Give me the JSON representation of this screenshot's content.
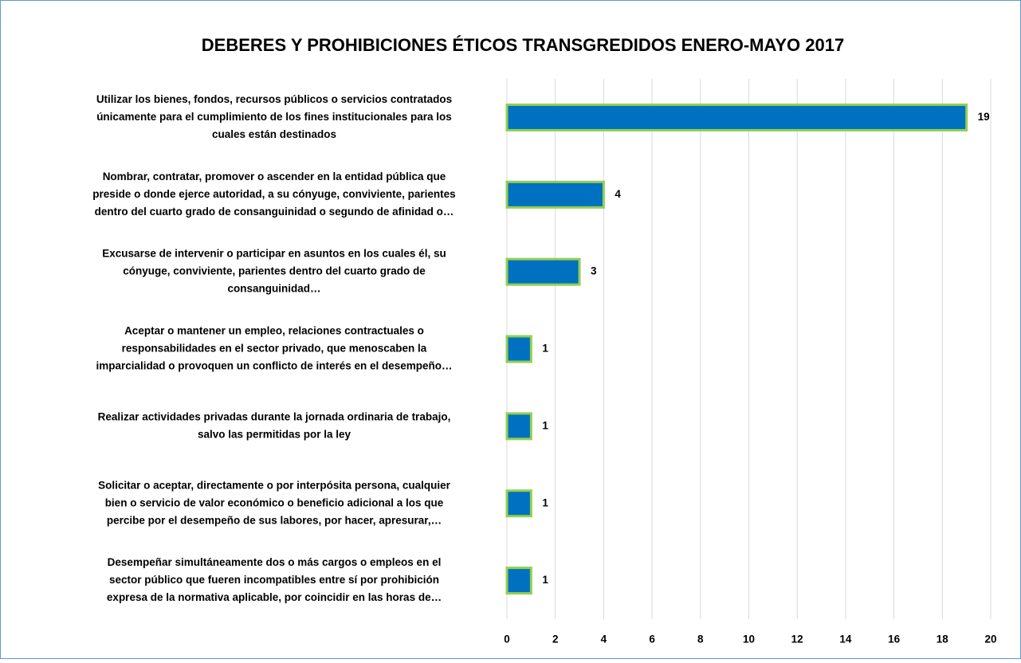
{
  "chart_data": {
    "type": "bar",
    "orientation": "horizontal",
    "title": "DEBERES Y PROHIBICIONES ÉTICOS TRANSGREDIDOS ENERO-MAYO 2017",
    "categories": [
      [
        "Utilizar los bienes, fondos, recursos públicos o servicios contratados",
        "únicamente para el cumplimiento de los fines institucionales para los",
        "cuales están destinados"
      ],
      [
        "Nombrar, contratar, promover o ascender en la entidad pública que",
        "preside o donde ejerce autoridad, a su cónyuge, conviviente, parientes",
        "dentro del cuarto grado de consanguinidad o segundo de afinidad o…"
      ],
      [
        "Excusarse de intervenir o participar en asuntos en los cuales él, su",
        "cónyuge, conviviente, parientes dentro del cuarto grado de",
        "consanguinidad…"
      ],
      [
        "Aceptar o mantener un empleo, relaciones contractuales o",
        "responsabilidades en el sector privado, que menoscaben la",
        "imparcialidad o provoquen un conflicto de interés en el desempeño…"
      ],
      [
        "Realizar actividades privadas durante la jornada ordinaria de trabajo,",
        "salvo las permitidas por la ley"
      ],
      [
        "Solicitar o aceptar, directamente o por interpósita persona, cualquier",
        "bien o servicio de valor económico o beneficio adicional a los que",
        "percibe por el desempeño de sus labores, por hacer, apresurar,…"
      ],
      [
        "Desempeñar simultáneamente dos o más cargos o empleos en el",
        "sector público que fueren incompatibles entre sí por prohibición",
        "expresa de la normativa aplicable, por coincidir en las horas de…"
      ]
    ],
    "values": [
      19,
      4,
      3,
      1,
      1,
      1,
      1
    ],
    "color": "#0070c0",
    "edge_color": "#92d050",
    "xlim": [
      0,
      20
    ],
    "xticks": [
      0,
      2,
      4,
      6,
      8,
      10,
      12,
      14,
      16,
      18,
      20
    ],
    "grid": true
  }
}
